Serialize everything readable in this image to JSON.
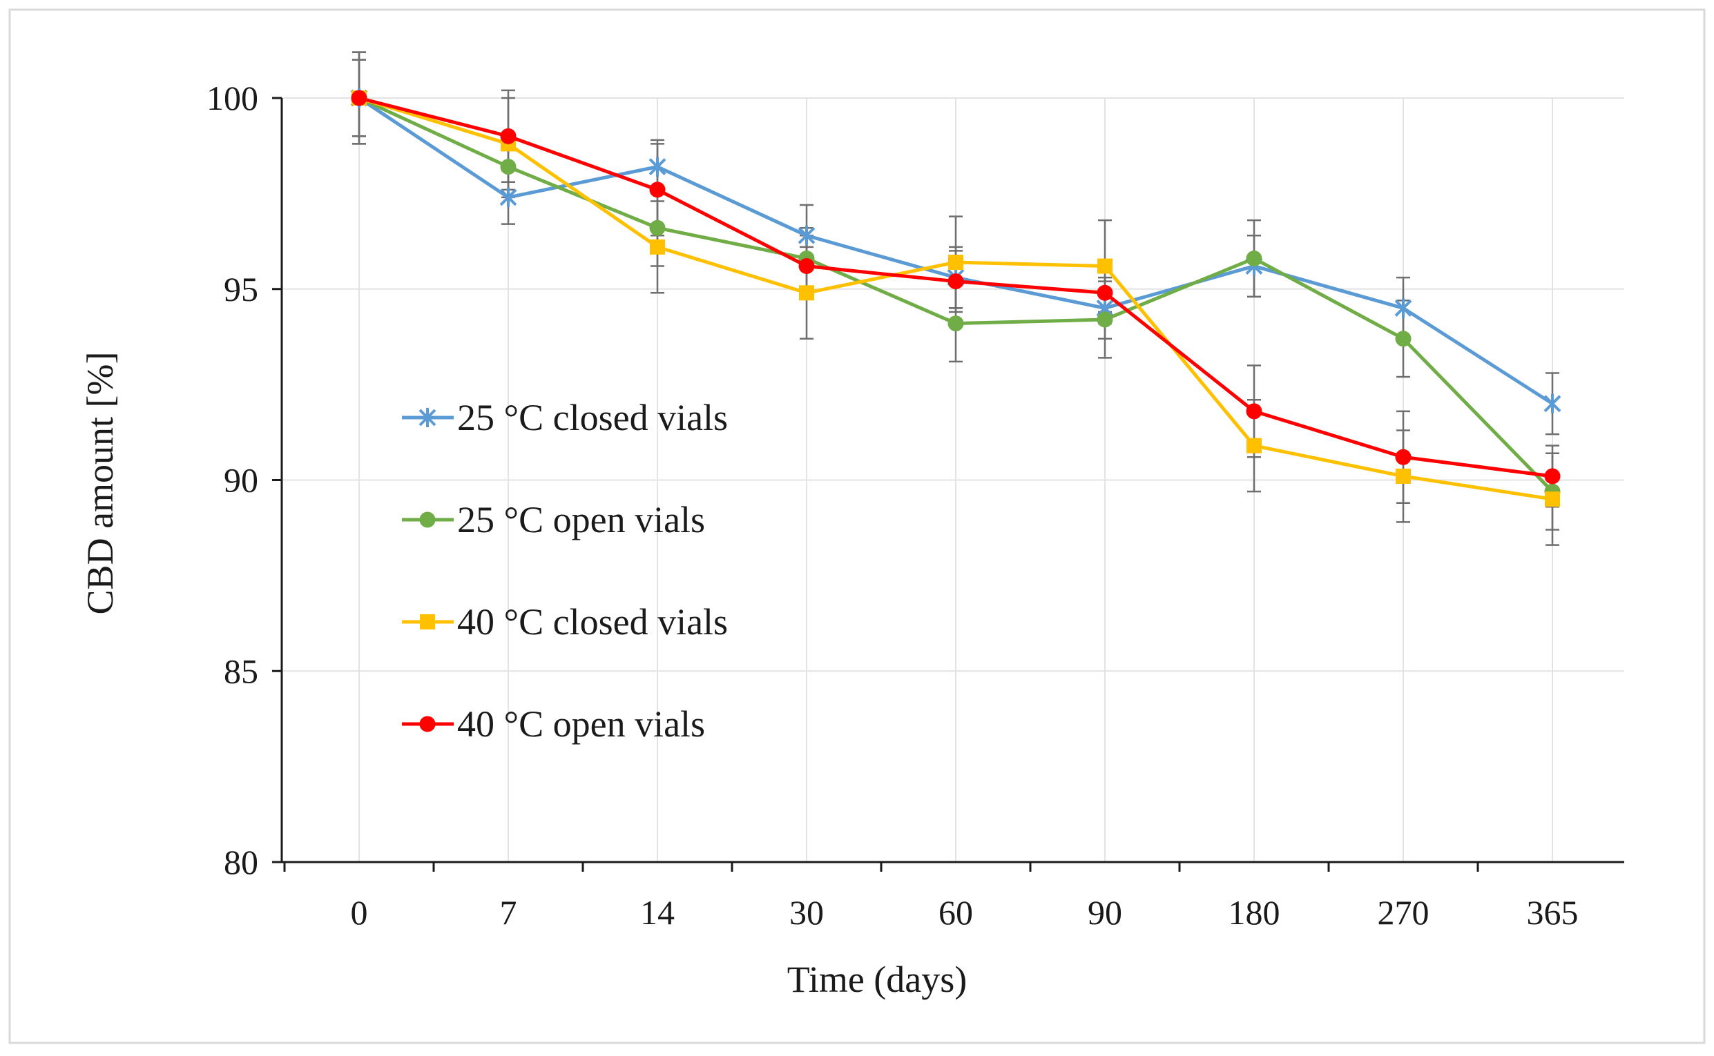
{
  "chart_data": {
    "type": "line",
    "title": "",
    "xlabel": "Time (days)",
    "ylabel": "CBD amount [%]",
    "categories": [
      "0",
      "7",
      "14",
      "30",
      "60",
      "90",
      "180",
      "270",
      "365"
    ],
    "ylim": [
      80,
      100
    ],
    "yticks": [
      "80",
      "85",
      "90",
      "95",
      "100"
    ],
    "grid": true,
    "legend_position": "left",
    "series": [
      {
        "name": "25 °C closed vials",
        "color": "#5b9bd5",
        "marker": "star",
        "values": [
          100,
          97.4,
          98.2,
          96.4,
          95.3,
          94.5,
          95.6,
          94.5,
          92.0
        ],
        "errors": [
          1.2,
          0.7,
          0.7,
          0.8,
          0.8,
          0.8,
          0.8,
          0.8,
          0.8
        ]
      },
      {
        "name": "25 °C open vials",
        "color": "#70ad47",
        "marker": "circle",
        "values": [
          100,
          98.2,
          96.6,
          95.8,
          94.1,
          94.2,
          95.8,
          93.7,
          89.7
        ],
        "errors": [
          1.0,
          0.8,
          1.0,
          0.8,
          1.0,
          1.0,
          1.0,
          1.0,
          1.0
        ]
      },
      {
        "name": "40 °C closed vials",
        "color": "#ffc000",
        "marker": "square",
        "values": [
          100,
          98.8,
          96.1,
          94.9,
          95.7,
          95.6,
          90.9,
          90.1,
          89.5
        ],
        "errors": [
          1.0,
          1.2,
          1.2,
          1.2,
          1.2,
          1.2,
          1.2,
          1.2,
          1.2
        ]
      },
      {
        "name": "40 °C open vials",
        "color": "#ff0000",
        "marker": "circle",
        "values": [
          100,
          99.0,
          97.6,
          95.6,
          95.2,
          94.9,
          91.8,
          90.6,
          90.1
        ],
        "errors": [
          1.2,
          1.2,
          1.2,
          0.8,
          0.8,
          0.8,
          1.2,
          1.2,
          0.8
        ]
      }
    ]
  }
}
